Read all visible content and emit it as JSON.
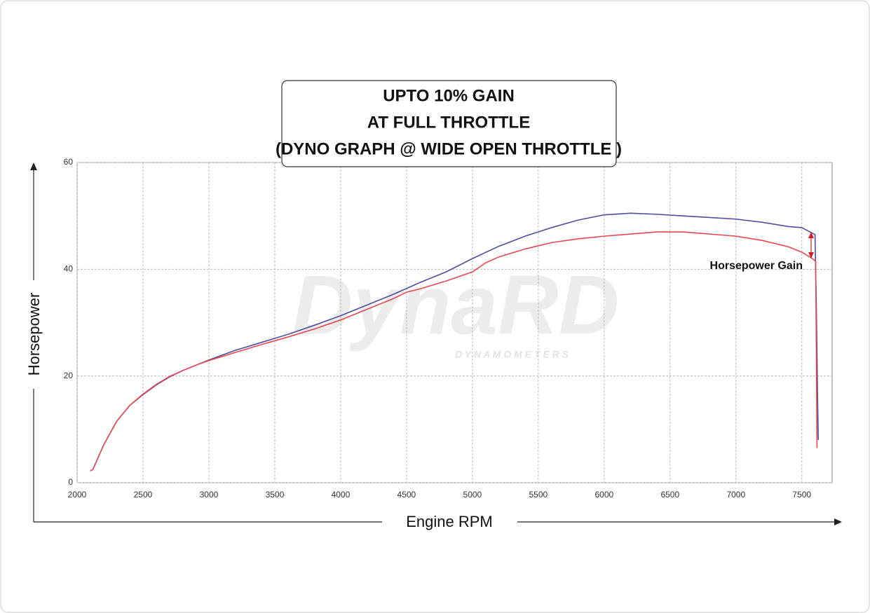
{
  "chart_data": {
    "type": "line",
    "title": [
      "UPTO 10% GAIN",
      "AT FULL THROTTLE",
      "(DYNO GRAPH @ WIDE OPEN THROTTLE )"
    ],
    "x_label": "Engine RPM",
    "y_label": "Horsepower",
    "annotation": "Horsepower Gain",
    "watermark": "DynaRD",
    "watermark_sub": "D Y N A M O M E T E R S",
    "xlim": [
      2000,
      7730
    ],
    "xticks": [
      2000,
      2500,
      3000,
      3500,
      4000,
      4500,
      5000,
      5500,
      6000,
      6500,
      7000,
      7500
    ],
    "ylim": [
      0,
      60
    ],
    "yticks": [
      0,
      20,
      40,
      60
    ],
    "grid": true,
    "series": [
      {
        "color": "#4b4f9f",
        "x": [
          2100,
          2120,
          2200,
          2300,
          2400,
          2500,
          2600,
          2700,
          2800,
          2900,
          3000,
          3200,
          3400,
          3600,
          3800,
          4000,
          4200,
          4400,
          4600,
          4800,
          5000,
          5200,
          5400,
          5600,
          5800,
          6000,
          6200,
          6400,
          6600,
          6800,
          7000,
          7200,
          7400,
          7500,
          7600,
          7610,
          7620,
          7625
        ],
        "values": [
          2.2,
          2.5,
          7,
          11.5,
          14.5,
          16.5,
          18.3,
          19.8,
          21,
          22,
          23,
          24.8,
          26.3,
          27.8,
          29.5,
          31.3,
          33.3,
          35.3,
          37.5,
          39.5,
          42,
          44.3,
          46.2,
          47.8,
          49.2,
          50.2,
          50.5,
          50.3,
          50,
          49.7,
          49.4,
          48.8,
          48,
          47.8,
          46.5,
          33,
          15,
          8
        ]
      },
      {
        "color": "#e8474f",
        "x": [
          2100,
          2120,
          2200,
          2300,
          2400,
          2500,
          2600,
          2700,
          2800,
          2900,
          3000,
          3200,
          3400,
          3600,
          3800,
          4000,
          4200,
          4400,
          4500,
          4600,
          4800,
          5000,
          5100,
          5200,
          5400,
          5600,
          5800,
          6000,
          6200,
          6400,
          6600,
          6800,
          7000,
          7200,
          7400,
          7500,
          7580,
          7605,
          7610,
          7615
        ],
        "values": [
          2.2,
          2.5,
          7,
          11.5,
          14.5,
          16.6,
          18.4,
          19.9,
          21,
          22,
          22.9,
          24.4,
          25.9,
          27.3,
          28.8,
          30.5,
          32.5,
          34.5,
          35.7,
          36.3,
          37.8,
          39.5,
          41.2,
          42.3,
          43.8,
          45,
          45.7,
          46.2,
          46.6,
          47,
          47,
          46.6,
          46.2,
          45.4,
          44.2,
          43.2,
          42,
          41.5,
          25,
          6.5
        ]
      }
    ]
  }
}
